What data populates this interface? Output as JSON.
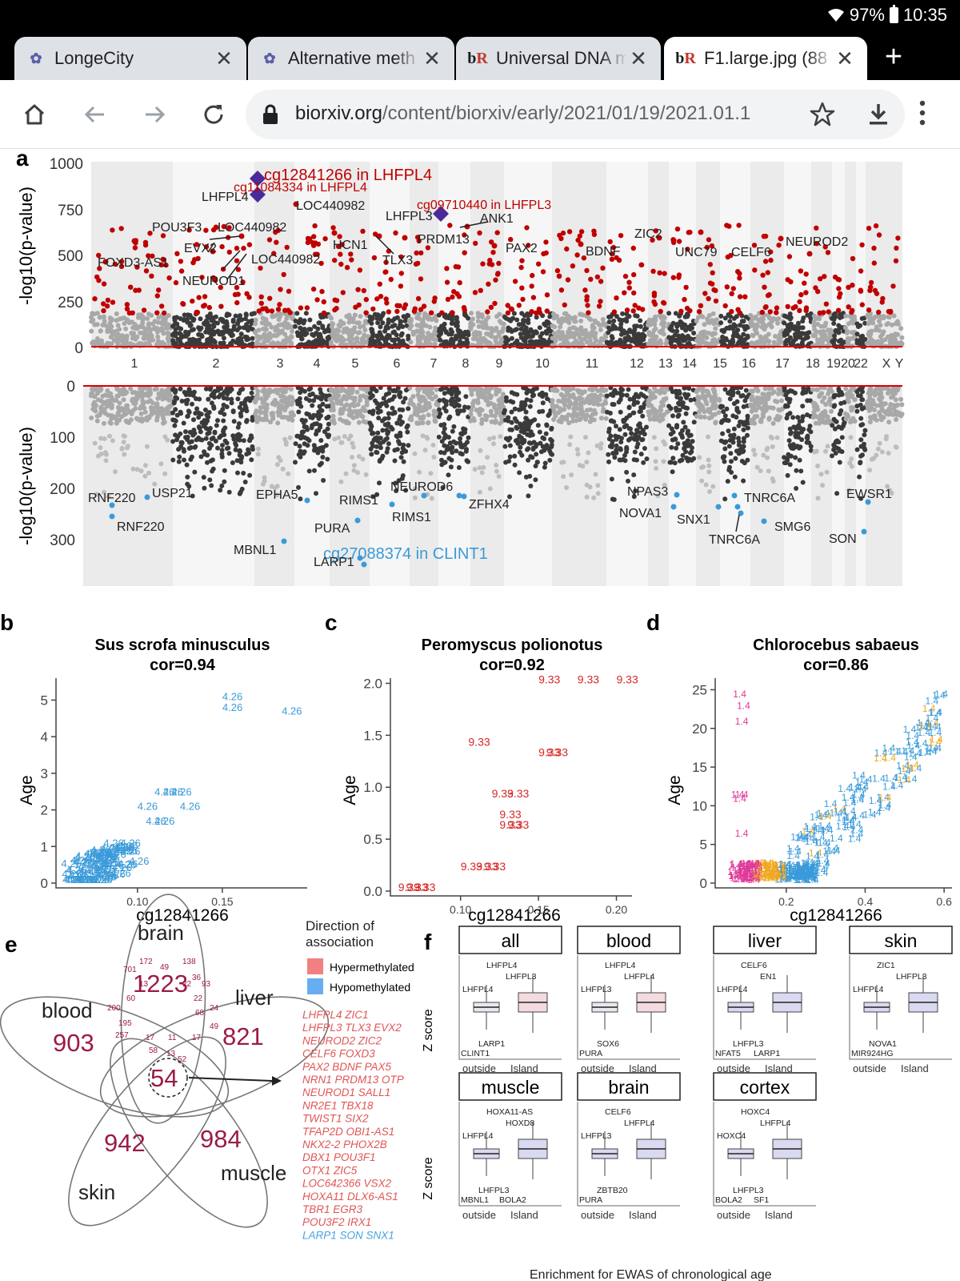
{
  "status_bar": {
    "battery": "97%",
    "time": "10:35"
  },
  "tabs": [
    {
      "title": "LongeCity",
      "icon": "longecity-icon",
      "active": false
    },
    {
      "title": "Alternative meth",
      "icon": "longecity-icon",
      "active": false
    },
    {
      "title": "Universal DNA m",
      "icon": "biorxiv-icon",
      "active": false
    },
    {
      "title": "F1.large.jpg (88",
      "icon": "biorxiv-icon",
      "active": true
    }
  ],
  "tab_close_label": "✕",
  "new_tab_label": "+",
  "address_bar": {
    "domain": "biorxiv.org",
    "path": "/content/biorxiv/early/2021/01/19/2021.01.1"
  },
  "colors": {
    "hyper": "#c00000",
    "hypo": "#3a9ad9",
    "top_hit": "#4b2a9a",
    "chrom_dark": "#3a3a3a",
    "chrom_light": "#a8a8a8",
    "venn_number": "#9b1b4a"
  },
  "figure": {
    "panel_a": {
      "label": "a",
      "ylabel": "-log10(p-value)",
      "top_yticks": [
        "1000",
        "750",
        "500",
        "250",
        "0"
      ],
      "bottom_yticks": [
        "0",
        "100",
        "200",
        "300"
      ],
      "chromosomes": [
        "1",
        "2",
        "3",
        "4",
        "5",
        "6",
        "7",
        "8",
        "9",
        "10",
        "11",
        "12",
        "13",
        "14",
        "15",
        "16",
        "17",
        "18",
        "19",
        "20",
        "22",
        "X",
        "Y"
      ],
      "top_hits": [
        {
          "text": "cg12841266 in LHFPL4",
          "red": true
        },
        {
          "text": "cg11084334 in LHFPL4",
          "red": true
        },
        {
          "text": "cg09710440 in LHFPL3",
          "red": true
        },
        {
          "text": "LHFPL4",
          "red": false
        },
        {
          "text": "LOC440982",
          "red": false
        },
        {
          "text": "LHFPL3",
          "red": false
        },
        {
          "text": "ANK1",
          "red": false
        },
        {
          "text": "POU3F3",
          "red": false
        },
        {
          "text": "LOC440982",
          "red": false
        },
        {
          "text": "PRDM13",
          "red": false
        },
        {
          "text": "ZIC2",
          "red": false
        },
        {
          "text": "NEUROD2",
          "red": false
        },
        {
          "text": "EVX2",
          "red": false
        },
        {
          "text": "HCN1",
          "red": false
        },
        {
          "text": "PAX2",
          "red": false
        },
        {
          "text": "BDNF",
          "red": false
        },
        {
          "text": "UNC79",
          "red": false
        },
        {
          "text": "CELF6",
          "red": false
        },
        {
          "text": "FOXD3-AS1",
          "red": false
        },
        {
          "text": "LOC440982",
          "red": false
        },
        {
          "text": "TLX3",
          "red": false
        },
        {
          "text": "NEUROD1",
          "red": false
        }
      ],
      "bottom_hits": [
        {
          "text": "RNF220",
          "blue": false
        },
        {
          "text": "USP21",
          "blue": false
        },
        {
          "text": "RNF220",
          "blue": false
        },
        {
          "text": "EPHA5",
          "blue": false
        },
        {
          "text": "RIMS1",
          "blue": false
        },
        {
          "text": "NEUROD6",
          "blue": false
        },
        {
          "text": "ZFHX4",
          "blue": false
        },
        {
          "text": "RIMS1",
          "blue": false
        },
        {
          "text": "PURA",
          "blue": false
        },
        {
          "text": "MBNL1",
          "blue": false
        },
        {
          "text": "cg27088374 in CLINT1",
          "blue": true
        },
        {
          "text": "LARP1",
          "blue": false
        },
        {
          "text": "NPAS3",
          "blue": false
        },
        {
          "text": "NOVA1",
          "blue": false
        },
        {
          "text": "SNX1",
          "blue": false
        },
        {
          "text": "TNRC6A",
          "blue": false
        },
        {
          "text": "TNRC6A",
          "blue": false
        },
        {
          "text": "SMG6",
          "blue": false
        },
        {
          "text": "EWSR1",
          "blue": false
        },
        {
          "text": "SON",
          "blue": false
        }
      ]
    },
    "panel_b": {
      "label": "b",
      "title": "Sus scrofa minusculus",
      "cor": "cor=0.94",
      "xlabel": "cg12841266",
      "ylabel": "Age",
      "point_label": "4.26"
    },
    "panel_c": {
      "label": "c",
      "title": "Peromyscus polionotus",
      "cor": "cor=0.92",
      "xlabel": "cg12841266",
      "ylabel": "Age",
      "point_label": "9.33"
    },
    "panel_d": {
      "label": "d",
      "title": "Chlorocebus sabaeus",
      "cor": "cor=0.86",
      "xlabel": "cg12841266",
      "ylabel": "Age",
      "point_label": "1.4"
    },
    "panel_e": {
      "label": "e",
      "sets": {
        "brain": "brain",
        "liver": "liver",
        "blood": "blood",
        "skin": "skin",
        "muscle": "muscle"
      },
      "unique": {
        "brain": "1223",
        "liver": "821",
        "blood": "903",
        "skin": "942",
        "muscle": "984"
      },
      "center": "54",
      "small": [
        "172",
        "49",
        "138",
        "13",
        "22",
        "36",
        "93",
        "22",
        "701",
        "60",
        "200",
        "68",
        "24",
        "49",
        "17",
        "17",
        "11",
        "195",
        "257",
        "58",
        "13",
        "52"
      ],
      "legend_title": "Direction of association",
      "legend_items": [
        "Hypermethylated",
        "Hypomethylated"
      ],
      "gene_lines_red": [
        "LHFPL4 ZIC1",
        "LHFPL3 TLX3 EVX2",
        "NEUROD2 ZIC2",
        "CELF6 FOXD3",
        "PAX2 BDNF PAX5",
        "NRN1 PRDM13 OTP",
        "NEUROD1 SALL1",
        "NR2E1 TBX18",
        "TWIST1 SIX2",
        "TFAP2D OBI1-AS1",
        "NKX2-2 PHOX2B",
        "DBX1 POU3F1",
        "OTX1 ZIC5",
        "LOC642366 VSX2",
        "HOXA11 DLX6-AS1",
        "TBR1 EGR3",
        "POU3F2 IRX1"
      ],
      "gene_lines_blue": [
        "LARP1 SON SNX1"
      ]
    },
    "panel_f": {
      "label": "f",
      "ylabel": "Z score",
      "xticks": [
        "outside",
        "Island"
      ],
      "facets": [
        {
          "name": "all",
          "annotations": [
            "LHFPL4",
            "LHFPL3",
            "LHFPL4",
            "LARP1",
            "CLINT1"
          ]
        },
        {
          "name": "blood",
          "annotations": [
            "LHFPL4",
            "LHFPL4",
            "LHFPL3",
            "SOX6",
            "PURA"
          ]
        },
        {
          "name": "liver",
          "annotations": [
            "CELF6",
            "EN1",
            "LHFPL4",
            "LHFPL3",
            "NFAT5",
            "LARP1"
          ]
        },
        {
          "name": "skin",
          "annotations": [
            "ZIC1",
            "LHFPL3",
            "LHFPL4",
            "NOVA1",
            "MIR924HG"
          ]
        },
        {
          "name": "muscle",
          "annotations": [
            "HOXA11-AS",
            "HOXD8",
            "LHFPL4",
            "LHFPL3",
            "MBNL1",
            "BOLA2"
          ]
        },
        {
          "name": "brain",
          "annotations": [
            "CELF6",
            "LHFPL4",
            "LHFPL3",
            "ZBTB20",
            "PURA"
          ]
        },
        {
          "name": "cortex",
          "annotations": [
            "HOXC4",
            "LHFPL4",
            "HOXC4",
            "LHFPL3",
            "BOLA2",
            "SF1"
          ]
        }
      ],
      "caption": "Enrichment for EWAS of chronological age"
    }
  }
}
